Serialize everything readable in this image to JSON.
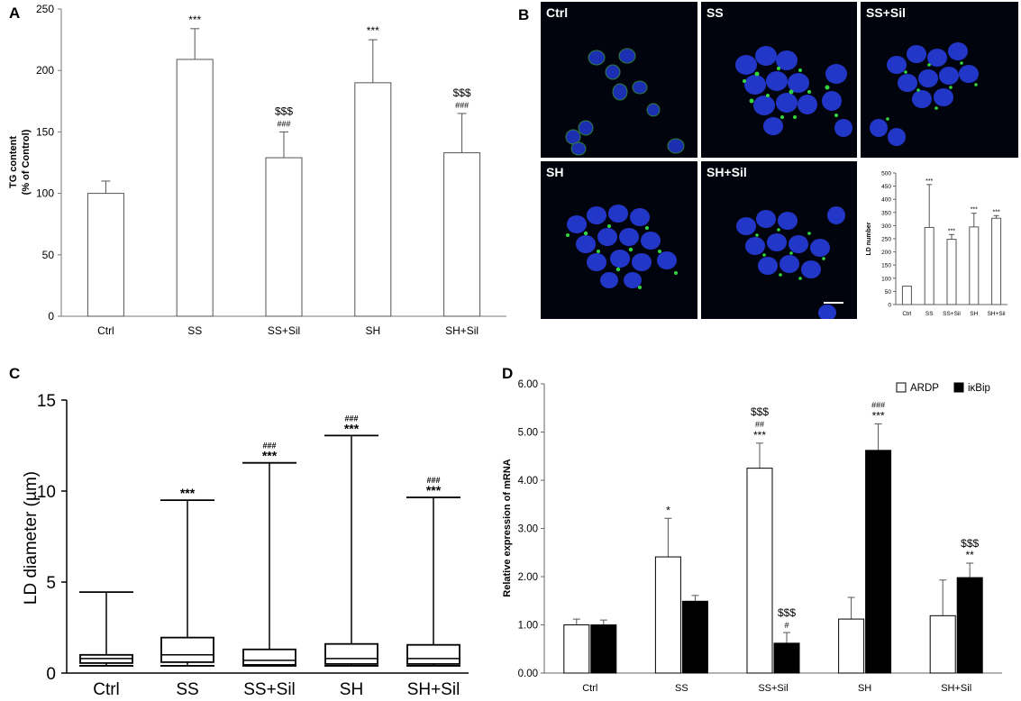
{
  "panels": {
    "A": {
      "letter": "A"
    },
    "B": {
      "letter": "B"
    },
    "C": {
      "letter": "C"
    },
    "D": {
      "letter": "D"
    }
  },
  "micrographs": {
    "labels": [
      "Ctrl",
      "SS",
      "SS+Sil",
      "SH",
      "SH+Sil"
    ]
  },
  "chart_data": [
    {
      "id": "A",
      "type": "bar",
      "categories": [
        "Ctrl",
        "SS",
        "SS+Sil",
        "SH",
        "SH+Sil"
      ],
      "values": [
        100,
        209,
        129,
        190,
        133
      ],
      "errors": [
        10,
        25,
        21,
        35,
        32
      ],
      "annotations": [
        [],
        [
          "***"
        ],
        [
          "$$$",
          "###"
        ],
        [
          "***"
        ],
        [
          "$$$",
          "###"
        ]
      ],
      "ylabel": "TG content\n(% of Control)",
      "ylim": [
        0,
        250
      ],
      "yticks": [
        0,
        50,
        100,
        150,
        200,
        250
      ],
      "bar_color": "#ffffff",
      "line_color": "#555555"
    },
    {
      "id": "B-inset",
      "type": "bar",
      "categories": [
        "Ctrl",
        "SS",
        "SS+Sil",
        "SH",
        "SH+Sil"
      ],
      "values": [
        70,
        293,
        248,
        295,
        328
      ],
      "errors": [
        0,
        163,
        18,
        52,
        10
      ],
      "annotations": [
        "",
        "***",
        "***",
        "***",
        "***"
      ],
      "ylabel": "LD number",
      "ylim": [
        0,
        500
      ],
      "yticks": [
        0,
        50,
        100,
        150,
        200,
        250,
        300,
        350,
        400,
        450,
        500
      ]
    },
    {
      "id": "C",
      "type": "box",
      "categories": [
        "Ctrl",
        "SS",
        "SS+Sil",
        "SH",
        "SH+Sil"
      ],
      "boxes": [
        {
          "min": 0.4,
          "q1": 0.55,
          "median": 0.8,
          "q3": 1.0,
          "max": 4.45
        },
        {
          "min": 0.4,
          "q1": 0.6,
          "median": 1.0,
          "q3": 1.95,
          "max": 9.5
        },
        {
          "min": 0.4,
          "q1": 0.45,
          "median": 0.7,
          "q3": 1.3,
          "max": 11.55
        },
        {
          "min": 0.4,
          "q1": 0.5,
          "median": 0.8,
          "q3": 1.6,
          "max": 13.05
        },
        {
          "min": 0.4,
          "q1": 0.5,
          "median": 0.8,
          "q3": 1.55,
          "max": 9.65
        }
      ],
      "annotations": [
        [],
        [
          "***"
        ],
        [
          "###",
          "***"
        ],
        [
          "###",
          "***"
        ],
        [
          "###",
          "***"
        ]
      ],
      "ylabel": "LD diameter (µm)",
      "ylim": [
        0,
        15
      ],
      "yticks": [
        0,
        5,
        10,
        15
      ]
    },
    {
      "id": "D",
      "type": "bar",
      "categories": [
        "Ctrl",
        "SS",
        "SS+Sil",
        "SH",
        "SH+Sil"
      ],
      "series": [
        {
          "name": "ARDP",
          "color": "#ffffff",
          "values": [
            1.0,
            2.41,
            4.25,
            1.12,
            1.19
          ],
          "errors": [
            0.12,
            0.8,
            0.52,
            0.45,
            0.74
          ]
        },
        {
          "name": "iκBip",
          "color": "#000000",
          "values": [
            1.0,
            1.49,
            0.62,
            4.62,
            1.98
          ],
          "errors": [
            0.1,
            0.12,
            0.22,
            0.55,
            0.3
          ]
        }
      ],
      "annotations": [
        [
          [],
          []
        ],
        [
          [
            "*"
          ],
          []
        ],
        [
          [
            "$$$",
            "##",
            "***"
          ],
          [
            "$$$",
            "#"
          ]
        ],
        [
          [],
          [
            "###",
            "***"
          ]
        ],
        [
          [],
          [
            "$$$",
            "**"
          ]
        ]
      ],
      "ylabel": "Relative expression of mRNA",
      "ylim": [
        0,
        6
      ],
      "yticks": [
        "0.00",
        "1.00",
        "2.00",
        "3.00",
        "4.00",
        "5.00",
        "6.00"
      ],
      "legend_position": "top-right"
    }
  ]
}
